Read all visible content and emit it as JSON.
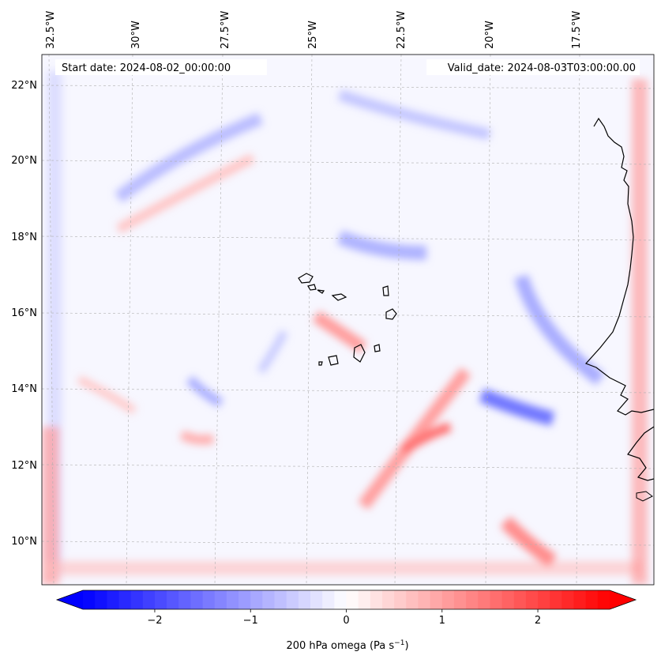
{
  "map": {
    "start_label": "Start date: 2024-08-02_00:00:00",
    "valid_label": "Valid_date: 2024-08-03T03:00:00.00",
    "lon_labels": [
      "32.5°W",
      "30°W",
      "27.5°W",
      "25°W",
      "22.5°W",
      "20°W",
      "17.5°W"
    ],
    "lat_labels": [
      "22°N",
      "20°N",
      "18°N",
      "16°N",
      "14°N",
      "12°N",
      "10°N"
    ]
  },
  "colorbar": {
    "label": "200 hPa omega (Pa s",
    "label_sup": "−1",
    "label_close": ")",
    "ticks": [
      "−2",
      "−1",
      "0",
      "1",
      "2"
    ],
    "min": -2.75,
    "max": 2.75,
    "negative_color": "#0000ff",
    "zero_color": "#ffffff",
    "positive_color": "#ff0000"
  }
}
